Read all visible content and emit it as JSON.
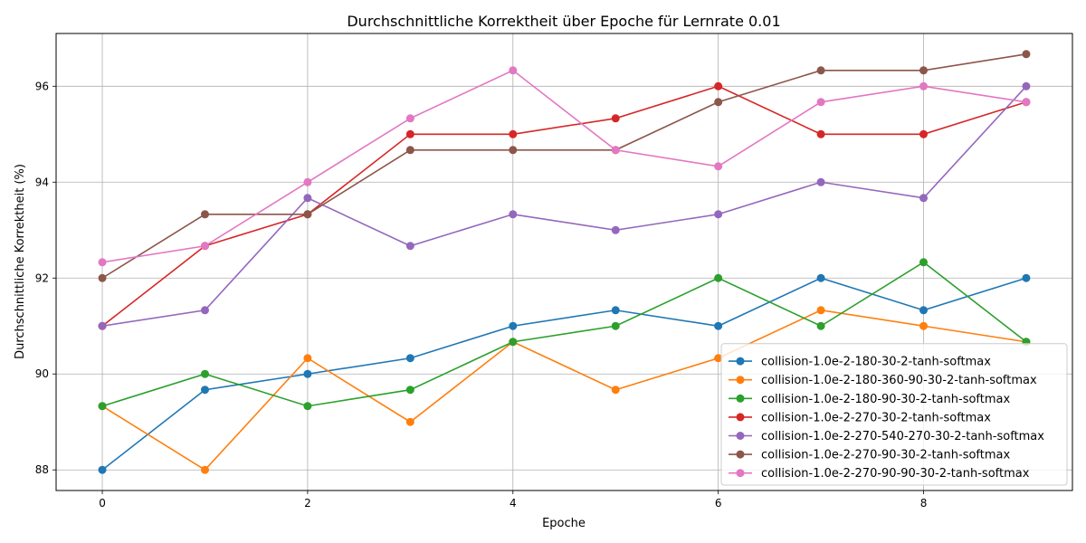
{
  "chart_data": {
    "type": "line",
    "title": "Durchschnittliche Korrektheit über Epoche für Lernrate 0.01",
    "xlabel": "Epoche",
    "ylabel": "Durchschnittliche Korrektheit (%)",
    "x": [
      0,
      1,
      2,
      3,
      4,
      5,
      6,
      7,
      8,
      9
    ],
    "xlim": [
      -0.45,
      9.45
    ],
    "ylim": [
      87.57,
      97.1
    ],
    "xticks": [
      0,
      2,
      4,
      6,
      8
    ],
    "yticks": [
      88,
      90,
      92,
      94,
      96
    ],
    "grid": true,
    "legend_position": "lower-right",
    "series": [
      {
        "name": "collision-1.0e-2-180-30-2-tanh-softmax",
        "color": "#1f77b4",
        "values": [
          88.0,
          89.67,
          90.0,
          90.33,
          91.0,
          91.33,
          91.0,
          92.0,
          91.33,
          92.0
        ]
      },
      {
        "name": "collision-1.0e-2-180-360-90-30-2-tanh-softmax",
        "color": "#ff7f0e",
        "values": [
          89.33,
          88.0,
          90.33,
          89.0,
          90.67,
          89.67,
          90.33,
          91.33,
          91.0,
          90.67
        ]
      },
      {
        "name": "collision-1.0e-2-180-90-30-2-tanh-softmax",
        "color": "#2ca02c",
        "values": [
          89.33,
          90.0,
          89.33,
          89.67,
          90.67,
          91.0,
          92.0,
          91.0,
          92.33,
          90.67
        ]
      },
      {
        "name": "collision-1.0e-2-270-30-2-tanh-softmax",
        "color": "#d62728",
        "values": [
          91.0,
          92.67,
          93.33,
          95.0,
          95.0,
          95.33,
          96.0,
          95.0,
          95.0,
          95.67
        ]
      },
      {
        "name": "collision-1.0e-2-270-540-270-30-2-tanh-softmax",
        "color": "#9467bd",
        "values": [
          91.0,
          91.33,
          93.67,
          92.67,
          93.33,
          93.0,
          93.33,
          94.0,
          93.67,
          96.0
        ]
      },
      {
        "name": "collision-1.0e-2-270-90-30-2-tanh-softmax",
        "color": "#8c564b",
        "values": [
          92.0,
          93.33,
          93.33,
          94.67,
          94.67,
          94.67,
          95.67,
          96.33,
          96.33,
          96.67
        ]
      },
      {
        "name": "collision-1.0e-2-270-90-90-30-2-tanh-softmax",
        "color": "#e377c2",
        "values": [
          92.33,
          92.67,
          94.0,
          95.33,
          96.33,
          94.67,
          94.33,
          95.67,
          96.0,
          95.67
        ]
      }
    ]
  }
}
